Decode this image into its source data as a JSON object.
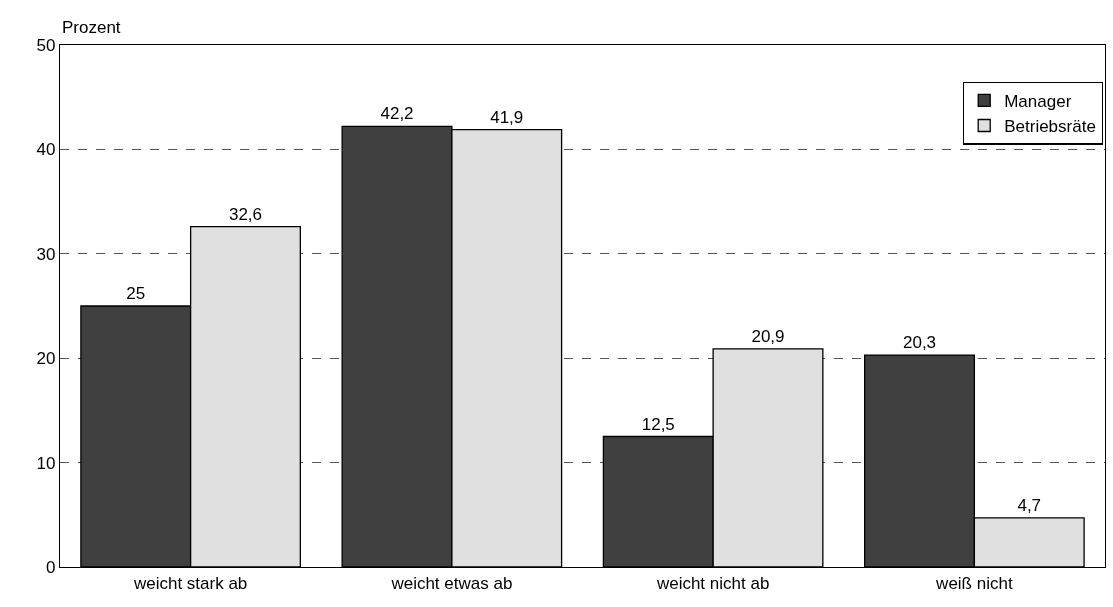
{
  "chart_data": {
    "type": "bar",
    "ylabel": "Prozent",
    "categories": [
      "weicht stark ab",
      "weicht etwas ab",
      "weicht nicht ab",
      "weiß nicht"
    ],
    "series": [
      {
        "name": "Manager",
        "color": "#404040",
        "values": [
          25,
          42.2,
          12.5,
          20.3
        ],
        "value_labels": [
          "25",
          "42,2",
          "12,5",
          "20,3"
        ]
      },
      {
        "name": "Betriebsräte",
        "color": "#e0e0e0",
        "values": [
          32.6,
          41.9,
          20.9,
          4.7
        ],
        "value_labels": [
          "32,6",
          "41,9",
          "20,9",
          "4,7"
        ]
      }
    ],
    "ylim": [
      0,
      50
    ],
    "yticks": [
      0,
      10,
      20,
      30,
      40,
      50
    ],
    "grid": "y",
    "legend": "top right"
  }
}
